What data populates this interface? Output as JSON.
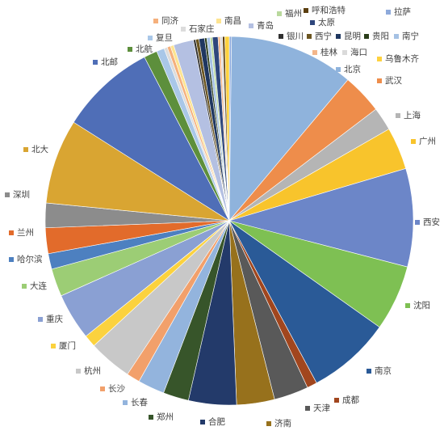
{
  "chart_data": {
    "type": "pie",
    "title": "",
    "legend": "none",
    "start_angle_deg": 0,
    "direction": "clockwise",
    "slices": [
      {
        "label": "拉萨",
        "value": 0.2,
        "color": "#8eaadb"
      },
      {
        "label": "北京",
        "value": 11.2,
        "color": "#8fb3dc"
      },
      {
        "label": "武汉",
        "value": 3.6,
        "color": "#ee8d4b"
      },
      {
        "label": "上海",
        "value": 2.1,
        "color": "#b5b5b5"
      },
      {
        "label": "广州",
        "value": 3.8,
        "color": "#f8c42c"
      },
      {
        "label": "西安",
        "value": 8.8,
        "color": "#6c86c8"
      },
      {
        "label": "沈阳",
        "value": 5.9,
        "color": "#7ec053"
      },
      {
        "label": "南京",
        "value": 7.5,
        "color": "#2a5a97"
      },
      {
        "label": "成都",
        "value": 0.9,
        "color": "#a1461e"
      },
      {
        "label": "天津",
        "value": 3.1,
        "color": "#595959"
      },
      {
        "label": "济南",
        "value": 3.4,
        "color": "#97711c"
      },
      {
        "label": "合肥",
        "value": 4.3,
        "color": "#233a6a"
      },
      {
        "label": "郑州",
        "value": 2.3,
        "color": "#37552a"
      },
      {
        "label": "长春",
        "value": 2.4,
        "color": "#93b4dd"
      },
      {
        "label": "长沙",
        "value": 1.2,
        "color": "#f2a06b"
      },
      {
        "label": "杭州",
        "value": 3.9,
        "color": "#c8c8c8"
      },
      {
        "label": "厦门",
        "value": 1.1,
        "color": "#fbd23e"
      },
      {
        "label": "重庆",
        "value": 4.2,
        "color": "#8aa0d3"
      },
      {
        "label": "大连",
        "value": 2.5,
        "color": "#9ccd75"
      },
      {
        "label": "哈尔滨",
        "value": 1.4,
        "color": "#4d80c0"
      },
      {
        "label": "兰州",
        "value": 2.3,
        "color": "#e26b2b"
      },
      {
        "label": "深圳",
        "value": 2.2,
        "color": "#8c8c8c"
      },
      {
        "label": "北大",
        "value": 7.6,
        "color": "#d9a532"
      },
      {
        "label": "北邮",
        "value": 8.6,
        "color": "#4f6eb7"
      },
      {
        "label": "北航",
        "value": 1.2,
        "color": "#5d8f3c"
      },
      {
        "label": "复旦",
        "value": 0.7,
        "color": "#a9c7e8"
      },
      {
        "label": "石家庄",
        "value": 0.3,
        "color": "#dcdcdc"
      },
      {
        "label": "同济",
        "value": 0.3,
        "color": "#f5b07c"
      },
      {
        "label": "南昌",
        "value": 0.3,
        "color": "#fde491"
      },
      {
        "label": "青岛",
        "value": 1.8,
        "color": "#b4c0e2"
      },
      {
        "label": "银川",
        "value": 0.2,
        "color": "#2f2f2f"
      },
      {
        "label": "西宁",
        "value": 0.3,
        "color": "#6b5520"
      },
      {
        "label": "昆明",
        "value": 0.5,
        "color": "#1f3760"
      },
      {
        "label": "贵阳",
        "value": 0.2,
        "color": "#2a3d1a"
      },
      {
        "label": "南宁",
        "value": 0.3,
        "color": "#a5c1e4"
      },
      {
        "label": "福州",
        "value": 0.2,
        "color": "#b9d99d"
      },
      {
        "label": "太原",
        "value": 0.5,
        "color": "#2e467c"
      },
      {
        "label": "桂林",
        "value": 0.2,
        "color": "#f4b68a"
      },
      {
        "label": "海口",
        "value": 0.2,
        "color": "#dadada"
      },
      {
        "label": "呼和浩特",
        "value": 0.2,
        "color": "#5b3f10"
      },
      {
        "label": "乌鲁木齐",
        "value": 0.4,
        "color": "#fed23f"
      }
    ]
  },
  "labels": [
    {
      "text": "拉萨",
      "color": "#8eaadb"
    },
    {
      "text": "北京",
      "color": "#8fb3dc"
    },
    {
      "text": "武汉",
      "color": "#ee8d4b"
    },
    {
      "text": "上海",
      "color": "#b5b5b5"
    },
    {
      "text": "广州",
      "color": "#f8c42c"
    },
    {
      "text": "西安",
      "color": "#6c86c8"
    },
    {
      "text": "沈阳",
      "color": "#7ec053"
    },
    {
      "text": "南京",
      "color": "#2a5a97"
    },
    {
      "text": "成都",
      "color": "#a1461e"
    },
    {
      "text": "天津",
      "color": "#595959"
    },
    {
      "text": "济南",
      "color": "#97711c"
    },
    {
      "text": "合肥",
      "color": "#233a6a"
    },
    {
      "text": "郑州",
      "color": "#37552a"
    },
    {
      "text": "长春",
      "color": "#93b4dd"
    },
    {
      "text": "长沙",
      "color": "#f2a06b"
    },
    {
      "text": "杭州",
      "color": "#c8c8c8"
    },
    {
      "text": "厦门",
      "color": "#fbd23e"
    },
    {
      "text": "重庆",
      "color": "#8aa0d3"
    },
    {
      "text": "大连",
      "color": "#9ccd75"
    },
    {
      "text": "哈尔滨",
      "color": "#4d80c0"
    },
    {
      "text": "兰州",
      "color": "#e26b2b"
    },
    {
      "text": "深圳",
      "color": "#8c8c8c"
    },
    {
      "text": "北大",
      "color": "#d9a532"
    },
    {
      "text": "北邮",
      "color": "#4f6eb7"
    },
    {
      "text": "北航",
      "color": "#5d8f3c"
    },
    {
      "text": "复旦",
      "color": "#a9c7e8"
    },
    {
      "text": "石家庄",
      "color": "#dcdcdc"
    },
    {
      "text": "同济",
      "color": "#f5b07c"
    },
    {
      "text": "南昌",
      "color": "#fde491"
    },
    {
      "text": "青岛",
      "color": "#b4c0e2"
    },
    {
      "text": "银川",
      "color": "#2f2f2f"
    },
    {
      "text": "西宁",
      "color": "#6b5520"
    },
    {
      "text": "昆明",
      "color": "#1f3760"
    },
    {
      "text": "贵阳",
      "color": "#2a3d1a"
    },
    {
      "text": "南宁",
      "color": "#a5c1e4"
    },
    {
      "text": "福州",
      "color": "#b9d99d"
    },
    {
      "text": "太原",
      "color": "#2e467c"
    },
    {
      "text": "桂林",
      "color": "#f4b68a"
    },
    {
      "text": "海口",
      "color": "#dadada"
    },
    {
      "text": "呼和浩特",
      "color": "#5b3f10"
    },
    {
      "text": "乌鲁木齐",
      "color": "#fed23f"
    }
  ]
}
